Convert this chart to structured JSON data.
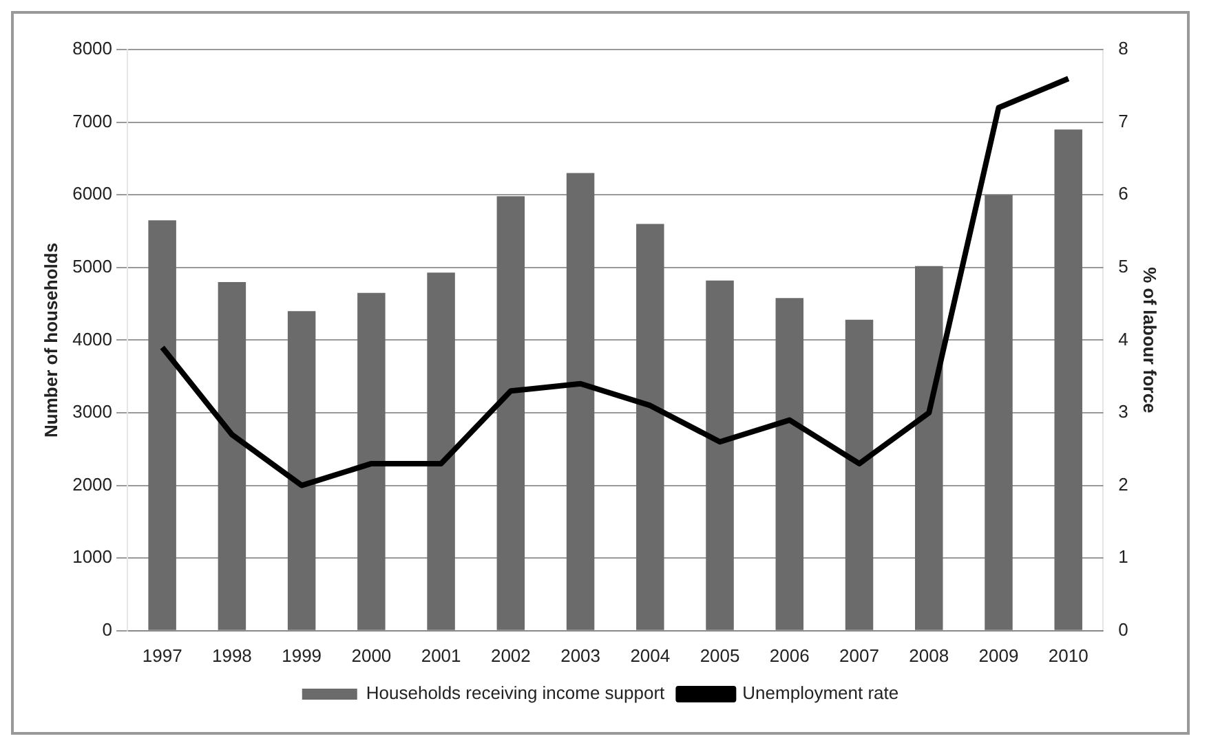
{
  "chart_data": {
    "type": "bar",
    "xlabel": null,
    "ylabel": "Number of households",
    "y2label": "% of labour force",
    "categories": [
      "1997",
      "1998",
      "1999",
      "2000",
      "2001",
      "2002",
      "2003",
      "2004",
      "2005",
      "2006",
      "2007",
      "2008",
      "2009",
      "2010"
    ],
    "series": [
      {
        "name": "Households receiving income support",
        "color": "#6b6b6b",
        "values": [
          5650,
          4800,
          4400,
          4650,
          4930,
          5980,
          6300,
          5600,
          4820,
          4580,
          4280,
          5020,
          6000,
          6900
        ]
      },
      {
        "name": "Unemployment rate",
        "type": "line",
        "axis": "y2",
        "color": "#000000",
        "values": [
          3.9,
          2.7,
          2.0,
          2.3,
          2.3,
          3.3,
          3.4,
          3.1,
          2.6,
          2.9,
          2.3,
          3.0,
          7.2,
          7.6
        ]
      }
    ],
    "ylim": [
      0,
      8000
    ],
    "yticks": [
      0,
      1000,
      2000,
      3000,
      4000,
      5000,
      6000,
      7000,
      8000
    ],
    "y2lim": [
      0,
      8
    ],
    "y2ticks": [
      0,
      1,
      2,
      3,
      4,
      5,
      6,
      7,
      8
    ],
    "grid": "y",
    "legend": "bottom",
    "marker": "none",
    "line_style": "solid"
  }
}
